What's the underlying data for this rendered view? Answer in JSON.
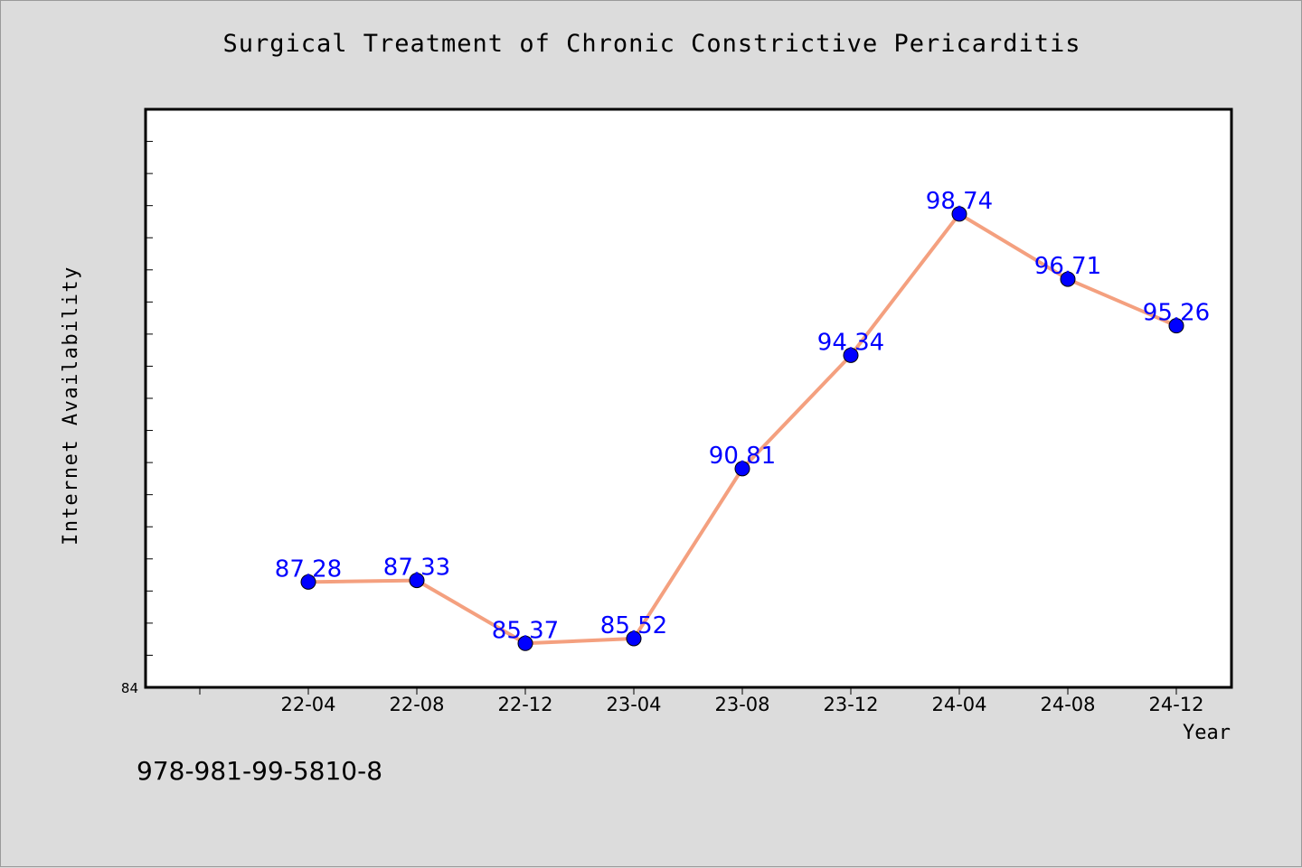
{
  "footer_text": "978-981-99-5810-8",
  "colors": {
    "background": "#dcdcdc",
    "plot_background": "#ffffff",
    "line": "#f4a07f",
    "marker": "#0000ff",
    "label": "#0000ff"
  },
  "chart_data": {
    "type": "line",
    "title": "Surgical Treatment of Chronic Constrictive Pericarditis",
    "xlabel": "Year",
    "ylabel": "Internet Availability",
    "categories": [
      "22-04",
      "22-08",
      "22-12",
      "23-04",
      "23-08",
      "23-12",
      "24-04",
      "24-08",
      "24-12"
    ],
    "series": [
      {
        "values": [
          87.28,
          87.33,
          85.37,
          85.52,
          90.81,
          94.34,
          98.74,
          96.71,
          95.26
        ]
      }
    ],
    "data_labels": [
      "87.28",
      "87.33",
      "85.37",
      "85.52",
      "90.81",
      "94.34",
      "98.74",
      "96.71",
      "95.26"
    ],
    "y_tick_labels": [
      "84"
    ],
    "ylim": [
      84,
      102
    ],
    "y_minor_step": 1,
    "grid": false,
    "legend": "none"
  }
}
